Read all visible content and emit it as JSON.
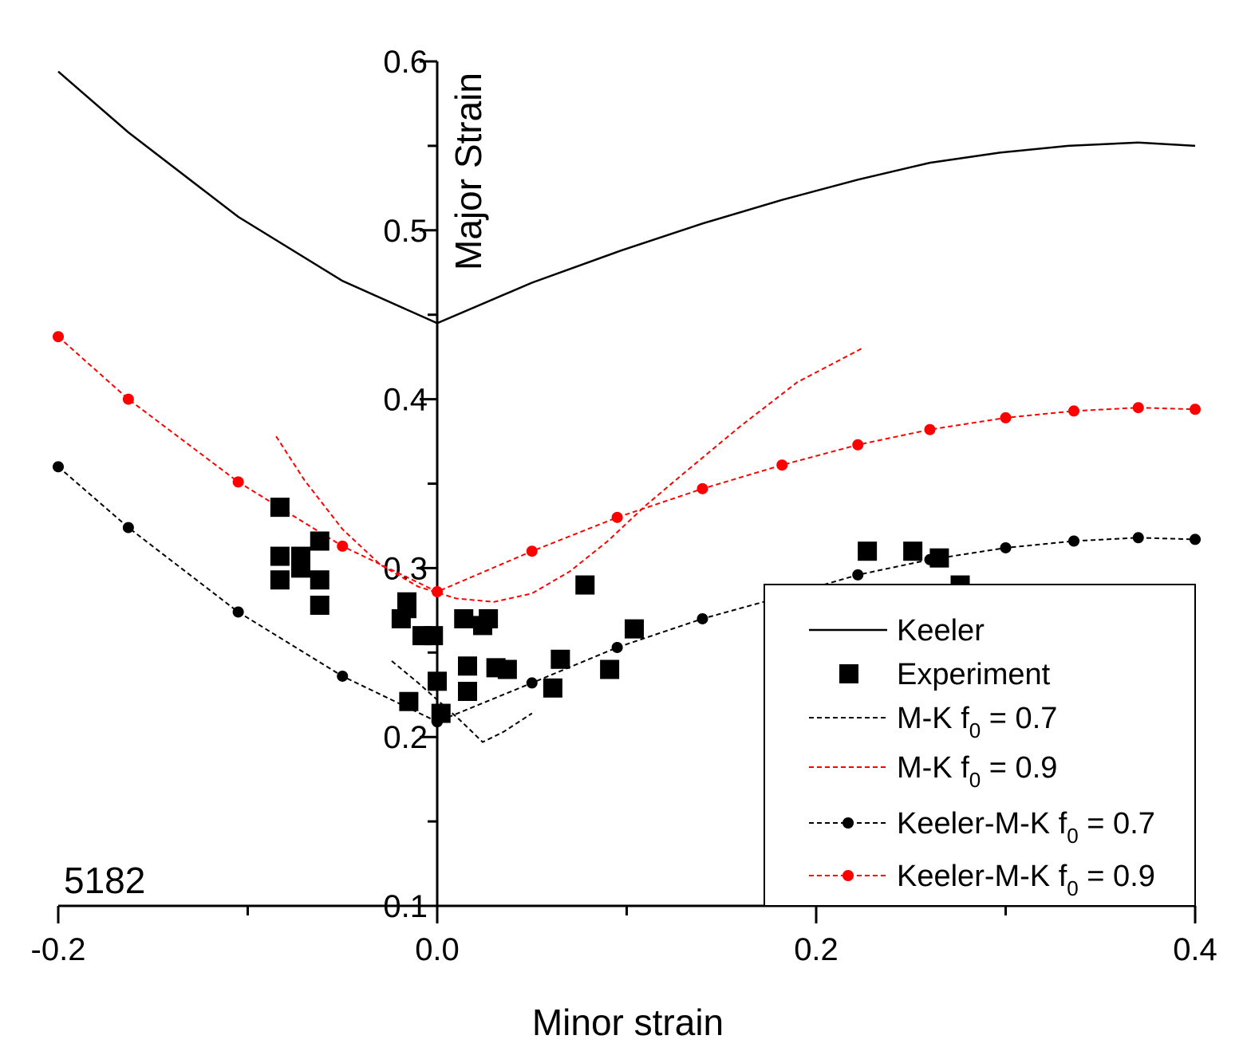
{
  "chart_data": {
    "type": "scatter",
    "title": "",
    "xlabel": "Minor strain",
    "ylabel": "Major Strain",
    "annotation": "5182",
    "xlim": [
      -0.2,
      0.4
    ],
    "ylim": [
      0.1,
      0.6
    ],
    "x_ticks": [
      {
        "value": -0.2,
        "label": "-0.2"
      },
      {
        "value": 0.0,
        "label": "0.0"
      },
      {
        "value": 0.2,
        "label": "0.2"
      },
      {
        "value": 0.4,
        "label": "0.4"
      }
    ],
    "x_minor_ticks": [
      -0.1,
      0.1,
      0.3
    ],
    "y_ticks": [
      {
        "value": 0.1,
        "label": "0.1"
      },
      {
        "value": 0.2,
        "label": "0.2"
      },
      {
        "value": 0.3,
        "label": "0.3"
      },
      {
        "value": 0.4,
        "label": "0.4"
      },
      {
        "value": 0.5,
        "label": "0.5"
      },
      {
        "value": 0.6,
        "label": "0.6"
      }
    ],
    "y_minor_ticks": [
      0.15,
      0.25,
      0.35,
      0.45,
      0.55
    ],
    "grid": false,
    "legend_position": "bottom-right",
    "series": [
      {
        "name": "Keeler",
        "legend_main": "Keeler",
        "legend_sub": "",
        "legend_after": "",
        "kind": "line",
        "color": "#000000",
        "dashed": false,
        "x": [
          -0.2,
          -0.163,
          -0.105,
          -0.05,
          0.0,
          0.05,
          0.097,
          0.14,
          0.182,
          0.222,
          0.26,
          0.297,
          0.333,
          0.37,
          0.4
        ],
        "y": [
          0.594,
          0.558,
          0.508,
          0.47,
          0.445,
          0.469,
          0.488,
          0.504,
          0.518,
          0.53,
          0.54,
          0.546,
          0.55,
          0.552,
          0.55
        ]
      },
      {
        "name": "Experiment",
        "legend_main": "Experiment",
        "legend_sub": "",
        "legend_after": "",
        "kind": "markers",
        "color": "#000000",
        "x": [
          -0.083,
          -0.083,
          -0.083,
          -0.072,
          -0.072,
          -0.062,
          -0.062,
          -0.062,
          -0.019,
          -0.016,
          -0.016,
          -0.015,
          -0.008,
          -0.002,
          0.0,
          0.002,
          0.014,
          0.016,
          0.016,
          0.024,
          0.027,
          0.031,
          0.037,
          0.061,
          0.065,
          0.078,
          0.091,
          0.104,
          0.227,
          0.251,
          0.265,
          0.276
        ],
        "y": [
          0.336,
          0.307,
          0.293,
          0.307,
          0.3,
          0.316,
          0.293,
          0.278,
          0.27,
          0.28,
          0.276,
          0.221,
          0.26,
          0.26,
          0.233,
          0.214,
          0.27,
          0.242,
          0.227,
          0.266,
          0.27,
          0.241,
          0.24,
          0.229,
          0.246,
          0.29,
          0.24,
          0.264,
          0.31,
          0.31,
          0.306,
          0.29
        ]
      },
      {
        "name": "M-K f0 = 0.7",
        "legend_main": "M-K f",
        "legend_sub": "0",
        "legend_after": " = 0.7",
        "kind": "line",
        "color": "#000000",
        "dashed": true,
        "x": [
          -0.024,
          -0.01,
          0.0,
          0.012,
          0.024,
          0.035,
          0.05
        ],
        "y": [
          0.245,
          0.232,
          0.222,
          0.21,
          0.197,
          0.203,
          0.214
        ]
      },
      {
        "name": "M-K f0 = 0.9",
        "legend_main": "M-K f",
        "legend_sub": "0",
        "legend_after": " = 0.9",
        "kind": "line",
        "color": "#ff0000",
        "dashed": true,
        "x": [
          -0.085,
          -0.07,
          -0.05,
          -0.03,
          -0.01,
          0.01,
          0.03,
          0.05,
          0.07,
          0.09,
          0.11,
          0.13,
          0.16,
          0.19,
          0.224
        ],
        "y": [
          0.378,
          0.352,
          0.323,
          0.302,
          0.289,
          0.282,
          0.28,
          0.285,
          0.298,
          0.316,
          0.337,
          0.356,
          0.384,
          0.41,
          0.43
        ]
      },
      {
        "name": "Keeler-M-K f0 = 0.7",
        "legend_main": "Keeler-M-K f",
        "legend_sub": "0",
        "legend_after": " = 0.7",
        "kind": "line-markers",
        "color": "#000000",
        "dashed": true,
        "x": [
          -0.2,
          -0.163,
          -0.105,
          -0.05,
          0.0,
          0.05,
          0.095,
          0.14,
          0.182,
          0.222,
          0.26,
          0.3,
          0.336,
          0.37,
          0.4
        ],
        "y": [
          0.36,
          0.324,
          0.274,
          0.236,
          0.209,
          0.232,
          0.253,
          0.27,
          0.283,
          0.296,
          0.305,
          0.312,
          0.316,
          0.318,
          0.317
        ]
      },
      {
        "name": "Keeler-M-K f0 = 0.9",
        "legend_main": "Keeler-M-K f",
        "legend_sub": "0",
        "legend_after": " = 0.9",
        "kind": "line-markers",
        "color": "#ff0000",
        "dashed": true,
        "x": [
          -0.2,
          -0.163,
          -0.105,
          -0.05,
          0.0,
          0.05,
          0.095,
          0.14,
          0.182,
          0.222,
          0.26,
          0.3,
          0.336,
          0.37,
          0.4
        ],
        "y": [
          0.437,
          0.4,
          0.351,
          0.313,
          0.286,
          0.31,
          0.33,
          0.347,
          0.361,
          0.373,
          0.382,
          0.389,
          0.393,
          0.395,
          0.394
        ]
      }
    ]
  }
}
